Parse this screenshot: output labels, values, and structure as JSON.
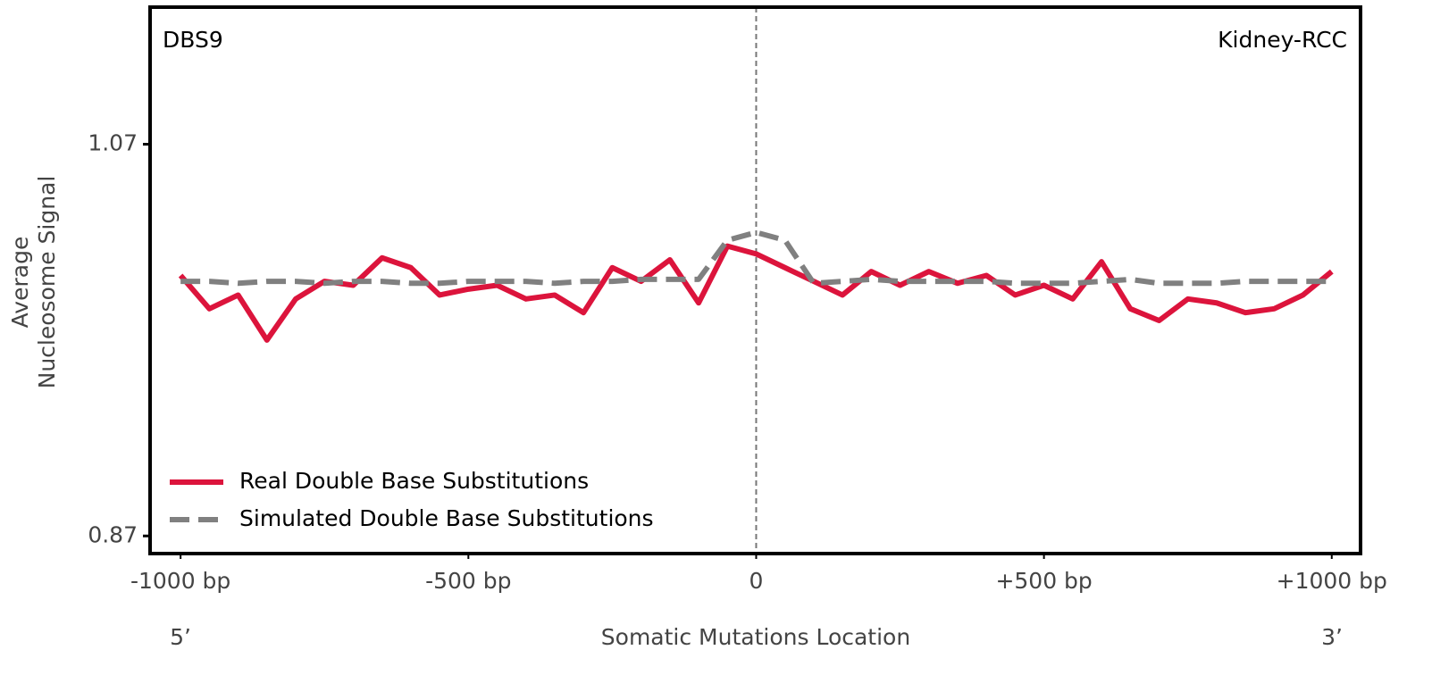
{
  "chart_data": {
    "type": "line",
    "annotations": {
      "left": "DBS9",
      "right": "Kidney-RCC",
      "five": "5’",
      "three": "3’"
    },
    "xlabel": "Somatic Mutations Location",
    "ylabel": [
      "Average",
      "Nucleosome Signal"
    ],
    "x": [
      -1000,
      -950,
      -900,
      -850,
      -800,
      -750,
      -700,
      -650,
      -600,
      -550,
      -500,
      -450,
      -400,
      -350,
      -300,
      -250,
      -200,
      -150,
      -100,
      -50,
      0,
      50,
      100,
      150,
      200,
      250,
      300,
      350,
      400,
      450,
      500,
      550,
      600,
      650,
      700,
      750,
      800,
      850,
      900,
      950,
      1000
    ],
    "series": [
      {
        "name": "Real Double Base Substitutions",
        "color": "#dc143c",
        "dash": false,
        "values": [
          1.003,
          0.986,
          0.993,
          0.97,
          0.991,
          1.0,
          0.998,
          1.012,
          1.007,
          0.993,
          0.996,
          0.998,
          0.991,
          0.993,
          0.984,
          1.007,
          1.0,
          1.011,
          0.989,
          1.018,
          1.014,
          1.007,
          1.0,
          0.993,
          1.005,
          0.998,
          1.005,
          0.999,
          1.003,
          0.993,
          0.998,
          0.991,
          1.01,
          0.986,
          0.98,
          0.991,
          0.989,
          0.984,
          0.986,
          0.993,
          1.005
        ]
      },
      {
        "name": "Simulated Double Base Substitutions",
        "color": "#808080",
        "dash": true,
        "values": [
          1.0,
          1.0,
          0.999,
          1.0,
          1.0,
          0.999,
          1.0,
          1.0,
          0.999,
          0.999,
          1.0,
          1.0,
          1.0,
          0.999,
          1.0,
          1.0,
          1.001,
          1.001,
          1.001,
          1.021,
          1.025,
          1.021,
          0.999,
          1.0,
          1.001,
          1.0,
          1.0,
          1.0,
          1.0,
          0.999,
          0.999,
          0.999,
          1.0,
          1.001,
          0.999,
          0.999,
          0.999,
          1.0,
          1.0,
          1.0,
          1.0
        ]
      }
    ],
    "xlim": [
      -1053,
      1050
    ],
    "xticks": [
      {
        "value": -1000,
        "label": "-1000 bp"
      },
      {
        "value": -500,
        "label": "-500 bp"
      },
      0,
      {
        "value": 500,
        "label": "+500 bp"
      },
      {
        "value": 1000,
        "label": "+1000 bp"
      }
    ],
    "ylim": [
      0.861,
      1.14
    ],
    "yticks": [
      0.87,
      1.07
    ],
    "center_line": 0,
    "legend": "lower left"
  }
}
